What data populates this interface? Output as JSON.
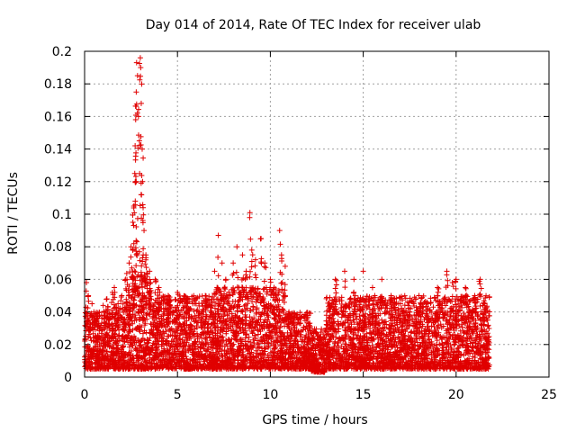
{
  "chart_data": {
    "type": "scatter",
    "title": "Day 014 of 2014, Rate Of TEC Index for receiver ulab",
    "xlabel": "GPS time / hours",
    "ylabel": "ROTI / TECUs",
    "xlim": [
      0,
      25
    ],
    "ylim": [
      0,
      0.2
    ],
    "xticks": [
      "0",
      "5",
      "10",
      "15",
      "20",
      "25"
    ],
    "yticks": [
      "0",
      "0.02",
      "0.04",
      "0.06",
      "0.08",
      "0.1",
      "0.12",
      "0.14",
      "0.16",
      "0.18",
      "0.2"
    ],
    "grid": true,
    "marker": "+",
    "color": "#e00000",
    "series": [
      {
        "points": [
          [
            0.1,
            0.058
          ],
          [
            0.2,
            0.05
          ],
          [
            0.4,
            0.045
          ],
          [
            0.5,
            0.04
          ],
          [
            0.8,
            0.038
          ],
          [
            1.0,
            0.044
          ],
          [
            1.2,
            0.048
          ],
          [
            1.5,
            0.052
          ],
          [
            1.6,
            0.055
          ],
          [
            1.8,
            0.045
          ],
          [
            2.0,
            0.05
          ],
          [
            2.2,
            0.06
          ],
          [
            2.4,
            0.07
          ],
          [
            2.5,
            0.08
          ],
          [
            2.6,
            0.095
          ],
          [
            2.65,
            0.105
          ],
          [
            2.7,
            0.125
          ],
          [
            2.72,
            0.142
          ],
          [
            2.75,
            0.158
          ],
          [
            2.78,
            0.175
          ],
          [
            2.8,
            0.193
          ],
          [
            2.85,
            0.185
          ],
          [
            2.9,
            0.16
          ],
          [
            2.95,
            0.145
          ],
          [
            3.0,
            0.196
          ],
          [
            3.02,
            0.19
          ],
          [
            3.05,
            0.168
          ],
          [
            3.1,
            0.14
          ],
          [
            3.12,
            0.12
          ],
          [
            3.15,
            0.104
          ],
          [
            3.2,
            0.09
          ],
          [
            3.3,
            0.075
          ],
          [
            3.5,
            0.065
          ],
          [
            3.8,
            0.06
          ],
          [
            4.0,
            0.055
          ],
          [
            4.5,
            0.05
          ],
          [
            5.0,
            0.052
          ],
          [
            5.5,
            0.048
          ],
          [
            6.0,
            0.045
          ],
          [
            6.5,
            0.05
          ],
          [
            7.0,
            0.065
          ],
          [
            7.2,
            0.087
          ],
          [
            7.4,
            0.07
          ],
          [
            7.6,
            0.06
          ],
          [
            8.0,
            0.07
          ],
          [
            8.2,
            0.08
          ],
          [
            8.5,
            0.075
          ],
          [
            8.7,
            0.065
          ],
          [
            8.9,
            0.101
          ],
          [
            9.0,
            0.078
          ],
          [
            9.2,
            0.072
          ],
          [
            9.5,
            0.085
          ],
          [
            9.7,
            0.07
          ],
          [
            10.0,
            0.06
          ],
          [
            10.2,
            0.055
          ],
          [
            10.5,
            0.09
          ],
          [
            10.6,
            0.075
          ],
          [
            10.8,
            0.068
          ],
          [
            11.0,
            0.04
          ],
          [
            11.5,
            0.035
          ],
          [
            12.0,
            0.03
          ],
          [
            12.5,
            0.02
          ],
          [
            13.0,
            0.03
          ],
          [
            13.5,
            0.06
          ],
          [
            14.0,
            0.065
          ],
          [
            14.5,
            0.06
          ],
          [
            15.0,
            0.065
          ],
          [
            15.5,
            0.055
          ],
          [
            16.0,
            0.06
          ],
          [
            16.5,
            0.05
          ],
          [
            17.0,
            0.045
          ],
          [
            17.5,
            0.04
          ],
          [
            18.0,
            0.05
          ],
          [
            18.5,
            0.045
          ],
          [
            19.0,
            0.055
          ],
          [
            19.5,
            0.065
          ],
          [
            19.8,
            0.058
          ],
          [
            20.0,
            0.06
          ],
          [
            20.5,
            0.055
          ],
          [
            21.0,
            0.05
          ],
          [
            21.3,
            0.06
          ],
          [
            21.5,
            0.045
          ],
          [
            21.7,
            0.035
          ]
        ]
      }
    ],
    "density": {
      "note_bands": "dense cloud of points",
      "bands": [
        [
          0.0,
          1.0,
          0.005,
          0.04
        ],
        [
          1.0,
          2.2,
          0.005,
          0.045
        ],
        [
          2.2,
          3.6,
          0.005,
          0.065
        ],
        [
          3.6,
          7.0,
          0.005,
          0.05
        ],
        [
          7.0,
          10.8,
          0.005,
          0.055
        ],
        [
          10.8,
          12.2,
          0.005,
          0.04
        ],
        [
          12.2,
          13.0,
          0.003,
          0.03
        ],
        [
          13.0,
          21.8,
          0.005,
          0.05
        ]
      ]
    }
  }
}
